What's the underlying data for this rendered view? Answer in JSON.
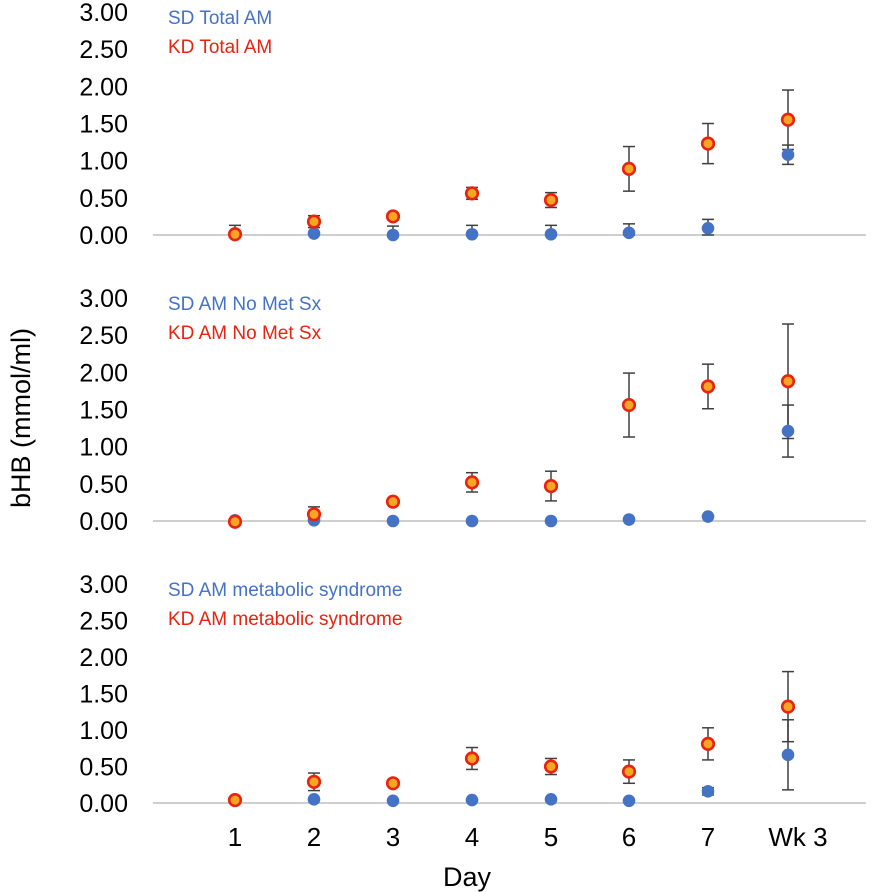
{
  "figure": {
    "ylabel": "bHB (mmol/ml)",
    "xlabel": "Day"
  },
  "colors": {
    "sd": "#4472C4",
    "kd": "#E8230F",
    "kd_center": "#F5A623",
    "error_bar": "#404040",
    "axis": "#BFBFBF"
  },
  "chart_data": [
    {
      "type": "scatter",
      "categories": [
        "1",
        "2",
        "3",
        "4",
        "5",
        "6",
        "7",
        "Wk 3"
      ],
      "ylim": [
        0,
        3
      ],
      "yticks": [
        "0.00",
        "0.50",
        "1.00",
        "1.50",
        "2.00",
        "2.50",
        "3.00"
      ],
      "legend_position": "top-left",
      "series": [
        {
          "name": "SD Total AM",
          "key": "sd",
          "values": [
            null,
            0.02,
            0.0,
            0.01,
            0.01,
            0.03,
            0.09,
            1.08
          ],
          "errors": [
            null,
            null,
            0.12,
            0.12,
            0.12,
            0.12,
            0.12,
            0.13
          ]
        },
        {
          "name": "KD Total AM",
          "key": "kd",
          "values": [
            0.01,
            0.18,
            0.25,
            0.56,
            0.47,
            0.89,
            1.23,
            1.55
          ],
          "errors": [
            0.12,
            0.08,
            0.03,
            0.08,
            0.1,
            0.3,
            0.27,
            0.4
          ]
        }
      ]
    },
    {
      "type": "scatter",
      "categories": [
        "1",
        "2",
        "3",
        "4",
        "5",
        "6",
        "7",
        "Wk 3"
      ],
      "ylim": [
        0,
        3
      ],
      "yticks": [
        "0.00",
        "0.50",
        "1.00",
        "1.50",
        "2.00",
        "2.50",
        "3.00"
      ],
      "legend_position": "top-left",
      "series": [
        {
          "name": "SD AM No Met Sx",
          "key": "sd",
          "values": [
            0.01,
            0.01,
            0.0,
            0.0,
            0.0,
            0.02,
            0.06,
            1.21
          ],
          "errors": [
            null,
            null,
            null,
            null,
            null,
            null,
            null,
            0.35
          ]
        },
        {
          "name": "KD AM No Met Sx",
          "key": "kd",
          "values": [
            -0.01,
            0.09,
            0.26,
            0.52,
            0.47,
            1.56,
            1.81,
            1.88
          ],
          "errors": [
            null,
            0.1,
            null,
            0.13,
            0.2,
            0.43,
            0.3,
            0.77
          ]
        }
      ]
    },
    {
      "type": "scatter",
      "categories": [
        "1",
        "2",
        "3",
        "4",
        "5",
        "6",
        "7",
        "Wk 3"
      ],
      "ylim": [
        0,
        3
      ],
      "yticks": [
        "0.00",
        "0.50",
        "1.00",
        "1.50",
        "2.00",
        "2.50",
        "3.00"
      ],
      "legend_position": "top-left",
      "series": [
        {
          "name": "SD AM metabolic syndrome",
          "key": "sd",
          "values": [
            0.05,
            0.05,
            0.03,
            0.04,
            0.05,
            0.03,
            0.16,
            0.66
          ],
          "errors": [
            null,
            null,
            null,
            null,
            null,
            null,
            0.05,
            0.48
          ]
        },
        {
          "name": "KD AM metabolic syndrome",
          "key": "kd",
          "values": [
            0.04,
            0.29,
            0.27,
            0.61,
            0.5,
            0.43,
            0.81,
            1.32
          ],
          "errors": [
            null,
            0.12,
            null,
            0.15,
            0.11,
            0.16,
            0.22,
            0.48
          ]
        }
      ]
    }
  ]
}
